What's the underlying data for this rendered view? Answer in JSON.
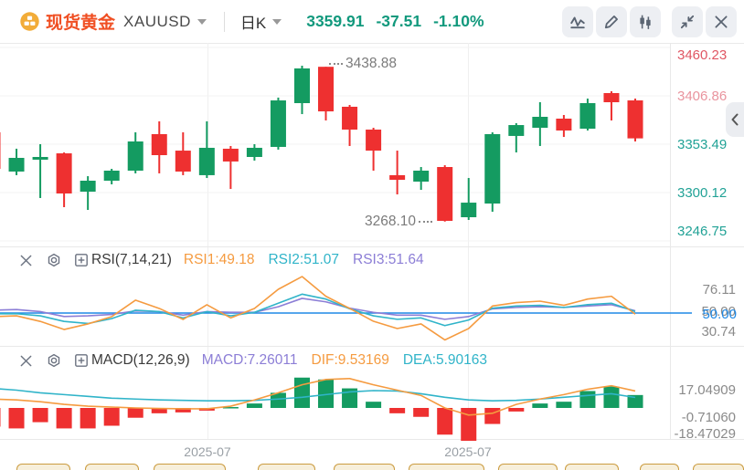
{
  "header": {
    "instrument": "现货黄金",
    "symbol": "XAUUSD",
    "period": "日K",
    "price": "3359.91",
    "change": "-37.51",
    "change_pct": "-1.10%",
    "toolbar_icons": [
      "indicator-icon",
      "draw-icon",
      "candlestick-icon",
      "collapse-icon",
      "close-icon"
    ]
  },
  "colors": {
    "up": "#149b61",
    "down": "#ee3030",
    "axis_red": "#e05663",
    "axis_red_light": "#e9949e",
    "axis_teal": "#21a296",
    "line_orange": "#f59b40",
    "line_cyan": "#30b4c9",
    "line_purple": "#8c7ed6",
    "line_blue": "#1e88e5",
    "header_price": "#12997d",
    "title_red": "#f04f23",
    "gold": "#cb9c40"
  },
  "main_chart": {
    "y_axis_labels": [
      {
        "text": "3460.23",
        "value": 3460.23,
        "color": "#e05663"
      },
      {
        "text": "3406.86",
        "value": 3406.86,
        "color": "#e9949e"
      },
      {
        "text": "3353.49",
        "value": 3353.49,
        "color": "#21a296"
      },
      {
        "text": "3300.12",
        "value": 3300.12,
        "color": "#21a296"
      },
      {
        "text": "3246.75",
        "value": 3246.75,
        "color": "#21a296"
      }
    ],
    "high_annotation": "3438.88",
    "low_annotation": "3268.10"
  },
  "rsi": {
    "title": "RSI(7,14,21)",
    "values": [
      {
        "label": "RSI1:49.18",
        "color": "#f59b40"
      },
      {
        "label": "RSI2:51.07",
        "color": "#30b4c9"
      },
      {
        "label": "RSI3:51.64",
        "color": "#8c7ed6"
      }
    ],
    "axis_max": "76.11",
    "axis_mid_gray": "50.00",
    "axis_mid_blue": "50.00",
    "axis_min": "30.74"
  },
  "macd": {
    "title": "MACD(12,26,9)",
    "values": [
      {
        "label": "MACD:7.26011",
        "color": "#8c7ed6"
      },
      {
        "label": "DIF:9.53169",
        "color": "#f59b40"
      },
      {
        "label": "DEA:5.90163",
        "color": "#30b4c9"
      }
    ],
    "axis_max": "17.04909",
    "axis_mid": "-0.71060",
    "axis_min": "-18.47029"
  },
  "time_axis": [
    "2025-07",
    "2025-07"
  ],
  "bottom_bar_segments": [
    [
      18,
      59
    ],
    [
      93,
      59
    ],
    [
      168,
      79
    ],
    [
      282,
      63
    ],
    [
      365,
      67
    ],
    [
      447,
      83
    ],
    [
      545,
      65
    ],
    [
      618,
      59
    ],
    [
      700,
      43
    ],
    [
      758,
      56
    ]
  ],
  "chart_data": {
    "type": "candlestick+indicators",
    "symbol": "XAUUSD",
    "period": "daily",
    "candles": [
      {
        "o": 3366.6,
        "h": 3376.7,
        "l": 3326.3,
        "c": 3326.3
      },
      {
        "o": 3323.3,
        "h": 3348.5,
        "l": 3319.3,
        "c": 3338.4
      },
      {
        "o": 3336.4,
        "h": 3353.5,
        "l": 3294.1,
        "c": 3339.4
      },
      {
        "o": 3343.4,
        "h": 3344.4,
        "l": 3284.0,
        "c": 3299.1
      },
      {
        "o": 3301.1,
        "h": 3318.2,
        "l": 3281.0,
        "c": 3313.2
      },
      {
        "o": 3313.2,
        "h": 3326.3,
        "l": 3309.2,
        "c": 3324.3
      },
      {
        "o": 3324.3,
        "h": 3366.6,
        "l": 3321.3,
        "c": 3356.5
      },
      {
        "o": 3364.6,
        "h": 3378.7,
        "l": 3321.3,
        "c": 3341.4
      },
      {
        "o": 3346.4,
        "h": 3366.6,
        "l": 3319.3,
        "c": 3323.3
      },
      {
        "o": 3319.3,
        "h": 3378.7,
        "l": 3316.2,
        "c": 3349.5
      },
      {
        "o": 3348.5,
        "h": 3351.5,
        "l": 3304.1,
        "c": 3334.4
      },
      {
        "o": 3339.4,
        "h": 3353.5,
        "l": 3335.4,
        "c": 3349.5
      },
      {
        "o": 3350.5,
        "h": 3404.9,
        "l": 3347.5,
        "c": 3401.8
      },
      {
        "o": 3398.8,
        "h": 3440.1,
        "l": 3386.7,
        "c": 3437.1
      },
      {
        "o": 3438.9,
        "h": 3438.88,
        "l": 3379.7,
        "c": 3389.7
      },
      {
        "o": 3394.8,
        "h": 3396.8,
        "l": 3351.5,
        "c": 3369.6
      },
      {
        "o": 3369.6,
        "h": 3371.6,
        "l": 3324.3,
        "c": 3346.4
      },
      {
        "o": 3319.3,
        "h": 3346.4,
        "l": 3298.1,
        "c": 3314.2
      },
      {
        "o": 3312.2,
        "h": 3328.3,
        "l": 3303.1,
        "c": 3324.3
      },
      {
        "o": 3328.3,
        "h": 3330.3,
        "l": 3268.1,
        "c": 3268.9
      },
      {
        "o": 3272.9,
        "h": 3316.2,
        "l": 3269.9,
        "c": 3289.0
      },
      {
        "o": 3288.0,
        "h": 3366.6,
        "l": 3279.0,
        "c": 3364.6
      },
      {
        "o": 3362.6,
        "h": 3376.7,
        "l": 3344.4,
        "c": 3374.6
      },
      {
        "o": 3371.6,
        "h": 3399.8,
        "l": 3351.5,
        "c": 3383.7
      },
      {
        "o": 3381.7,
        "h": 3385.7,
        "l": 3361.5,
        "c": 3368.6
      },
      {
        "o": 3370.6,
        "h": 3403.8,
        "l": 3368.6,
        "c": 3398.8
      },
      {
        "o": 3409.9,
        "h": 3411.9,
        "l": 3379.7,
        "c": 3399.8
      },
      {
        "o": 3401.8,
        "h": 3403.8,
        "l": 3356.5,
        "c": 3359.91
      }
    ],
    "rsi1": [
      47.4,
      48,
      44,
      38.2,
      42.2,
      47.4,
      59.2,
      53.3,
      45.4,
      55.9,
      46.5,
      53.3,
      67,
      76.11,
      62,
      53.3,
      44.1,
      38.9,
      42.2,
      30.74,
      38.9,
      55,
      57.5,
      58.5,
      55.5,
      60,
      62,
      49.18
    ],
    "rsi2": [
      49.5,
      49.5,
      48,
      44,
      42.5,
      46,
      52,
      51,
      46.5,
      51,
      48,
      50.5,
      57,
      63.5,
      60,
      53,
      48,
      45.5,
      46.5,
      41,
      45,
      53.5,
      55,
      55.5,
      54,
      56,
      57,
      51.07
    ],
    "rsi3": [
      52,
      52.5,
      51,
      47.5,
      48,
      49,
      51.5,
      51,
      48.5,
      51,
      50.5,
      50.5,
      54.5,
      60.5,
      58,
      53.5,
      50.5,
      48.5,
      48.5,
      45.5,
      47.5,
      53,
      54,
      54.5,
      54,
      55,
      56,
      51.64
    ],
    "macd_hist": [
      -10.5,
      -11.5,
      -8,
      -11.5,
      -11.5,
      -10,
      -5.5,
      -3,
      -2.5,
      -1.5,
      0.5,
      2.5,
      8.5,
      17.05,
      16,
      11,
      3.5,
      -3,
      -5,
      -15,
      -18.47,
      -9,
      -2,
      2.5,
      3.5,
      9.5,
      12,
      7.26011
    ],
    "dif": [
      5,
      4.5,
      3.5,
      2,
      1,
      0.5,
      0,
      -0.3,
      -0.5,
      -0.5,
      1,
      4.5,
      8.5,
      13,
      16,
      16.5,
      13,
      10,
      7,
      0,
      -4,
      -3,
      2,
      5,
      7.5,
      10.5,
      12.5,
      9.53169
    ],
    "dea": [
      11,
      10,
      8.5,
      7.5,
      6.5,
      5.5,
      5,
      4.5,
      4.25,
      4,
      4,
      4.25,
      5,
      6,
      7.5,
      9,
      9.75,
      9.5,
      8,
      6,
      4.5,
      4,
      4.25,
      5,
      6,
      7,
      8,
      5.90163
    ],
    "rsi_guide": 50,
    "x_labels": [
      "2025-07",
      "2025-07"
    ]
  }
}
